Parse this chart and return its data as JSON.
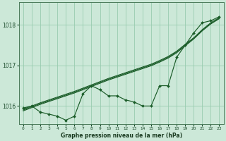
{
  "background_color": "#cce8d8",
  "plot_bg_color": "#cce8d8",
  "grid_color": "#99ccb0",
  "line_color": "#1a5c28",
  "marker_color": "#1a5c28",
  "title": "Graphe pression niveau de la mer (hPa)",
  "xlim": [
    -0.5,
    23.5
  ],
  "ylim": [
    1015.55,
    1018.55
  ],
  "yticks": [
    1016,
    1017,
    1018
  ],
  "xticks": [
    0,
    1,
    2,
    3,
    4,
    5,
    6,
    7,
    8,
    9,
    10,
    11,
    12,
    13,
    14,
    15,
    16,
    17,
    18,
    19,
    20,
    21,
    22,
    23
  ],
  "hours": [
    0,
    1,
    2,
    3,
    4,
    5,
    6,
    7,
    8,
    9,
    10,
    11,
    12,
    13,
    14,
    15,
    16,
    17,
    18,
    19,
    20,
    21,
    22,
    23
  ],
  "pressure_main": [
    1015.95,
    1016.0,
    1015.85,
    1015.8,
    1015.75,
    1015.65,
    1015.75,
    1016.3,
    1016.5,
    1016.4,
    1016.25,
    1016.25,
    1016.15,
    1016.1,
    1016.0,
    1016.0,
    1016.5,
    1016.5,
    1017.2,
    1017.5,
    1017.8,
    1018.05,
    1018.1,
    1018.2
  ],
  "smooth1": [
    1015.92,
    1016.0,
    1016.08,
    1016.15,
    1016.22,
    1016.29,
    1016.36,
    1016.44,
    1016.52,
    1016.6,
    1016.68,
    1016.75,
    1016.82,
    1016.89,
    1016.96,
    1017.03,
    1017.12,
    1017.22,
    1017.35,
    1017.52,
    1017.68,
    1017.88,
    1018.05,
    1018.18
  ],
  "smooth2": [
    1015.9,
    1015.98,
    1016.06,
    1016.13,
    1016.2,
    1016.27,
    1016.34,
    1016.42,
    1016.5,
    1016.58,
    1016.66,
    1016.73,
    1016.8,
    1016.87,
    1016.94,
    1017.01,
    1017.1,
    1017.2,
    1017.33,
    1017.5,
    1017.67,
    1017.87,
    1018.03,
    1018.16
  ],
  "smooth3": [
    1015.88,
    1015.96,
    1016.04,
    1016.11,
    1016.18,
    1016.25,
    1016.32,
    1016.4,
    1016.48,
    1016.56,
    1016.64,
    1016.71,
    1016.78,
    1016.85,
    1016.92,
    1016.99,
    1017.08,
    1017.18,
    1017.31,
    1017.48,
    1017.65,
    1017.85,
    1018.02,
    1018.15
  ]
}
